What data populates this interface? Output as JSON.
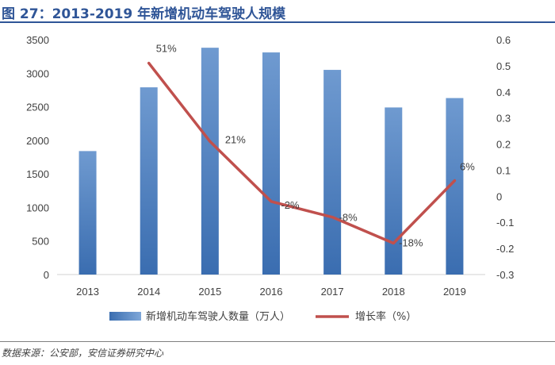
{
  "title": "图 27：2013-2019 年新增机动车驾驶人规模",
  "source": "数据来源：公安部，安信证券研究中心",
  "colors": {
    "bar": "#4f81bd",
    "line": "#c0504d",
    "title": "#2f5597"
  },
  "chart_data": {
    "type": "bar",
    "categories": [
      "2013",
      "2014",
      "2015",
      "2016",
      "2017",
      "2018",
      "2019"
    ],
    "series": [
      {
        "name": "新增机动车驾驶人数量（万人）",
        "type": "bar",
        "axis": "left",
        "values": [
          1840,
          2790,
          3380,
          3310,
          3050,
          2490,
          2630
        ]
      },
      {
        "name": "增长率（%）",
        "type": "line",
        "axis": "right",
        "values": [
          null,
          0.51,
          0.21,
          -0.02,
          -0.08,
          -0.18,
          0.06
        ],
        "labels": [
          "",
          "51%",
          "21%",
          "-2%",
          "-8%",
          "-18%",
          "6%"
        ]
      }
    ],
    "ylim": [
      0,
      3500
    ],
    "yticks": [
      "0",
      "500",
      "1000",
      "1500",
      "2000",
      "2500",
      "3000",
      "3500"
    ],
    "y2lim": [
      -0.3,
      0.6
    ],
    "y2ticks": [
      "-0.3",
      "-0.2",
      "-0.1",
      "0",
      "0.1",
      "0.2",
      "0.3",
      "0.4",
      "0.5",
      "0.6"
    ],
    "legend": "bottom",
    "grid": false
  }
}
